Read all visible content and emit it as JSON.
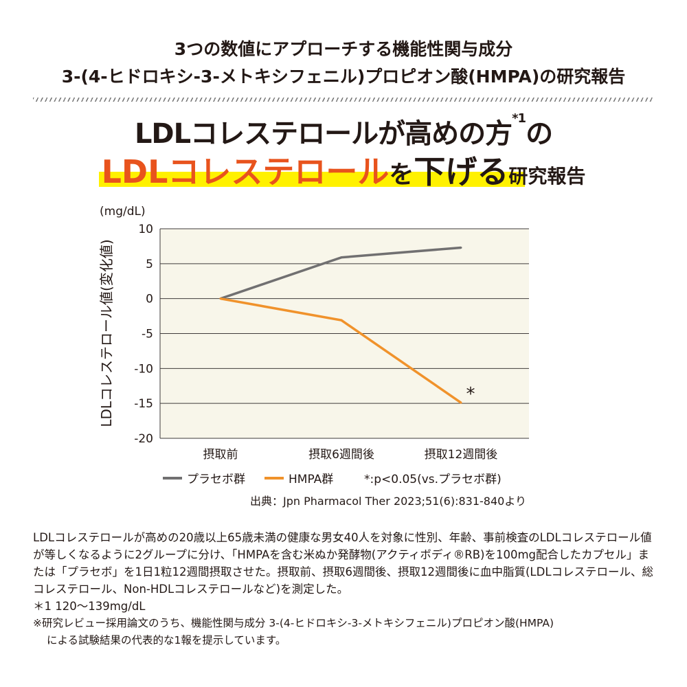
{
  "header": {
    "line1": "3つの数値にアプローチする機能性関与成分",
    "line2": "3-(4-ヒドロキシ-3-メトキシフェニル)プロピオン酸(HMPA)の研究報告"
  },
  "title": {
    "line1": "LDLコレステロールが高めの方",
    "line1_sup": "*1",
    "line1_end": "の",
    "line2_highlight": "LDLコレステロール",
    "line2_particle": "を",
    "line2_bold": "下げる",
    "line2_tail": "研究報告"
  },
  "chart_data": {
    "type": "line",
    "unit_label": "(mg/dL)",
    "ylabel": "LDLコレステロール値(変化値)",
    "ylim": [
      -20,
      10
    ],
    "yticks": [
      10,
      5,
      0,
      -5,
      -10,
      -15,
      -20
    ],
    "categories": [
      "摂取前",
      "摂取6週間後",
      "摂取12週間後"
    ],
    "grid": true,
    "background": "#f8f6ea",
    "series": [
      {
        "name": "プラセボ群",
        "values": [
          0,
          5.9,
          7.3
        ],
        "color": "#717071"
      },
      {
        "name": "HMPA群",
        "values": [
          0,
          -3.1,
          -14.9
        ],
        "color": "#f0922b"
      }
    ],
    "annotation": "*",
    "legend_note": "*:p<0.05(vs.プラセボ群)",
    "source": "出典：Jpn Pharmacol Ther 2023;51(6):831-840より"
  },
  "description": {
    "paragraph": "LDLコレステロールが高めの20歳以上65歳未満の健康な男女40人を対象に性別、年齢、事前検査のLDLコレステロール値が等しくなるように2グループに分け、「HMPAを含む米ぬか発酵物(アクティボディ®RB)を100mg配合したカプセル」または「プラセボ」を1日1粒12週間摂取させた。摂取前、摂取6週間後、摂取12週間後に血中脂質(LDLコレステロール、総コレステロール、Non-HDLコレステロールなど)を測定した。",
    "note1": "＊1 120〜139mg/dL",
    "note2": "※研究レビュー採用論文のうち、機能性関与成分 3-(4-ヒドロキシ-3-メトキシフェニル)プロピオン酸(HMPA)",
    "note2_cont": "による試験結果の代表的な1報を提示しています。"
  }
}
